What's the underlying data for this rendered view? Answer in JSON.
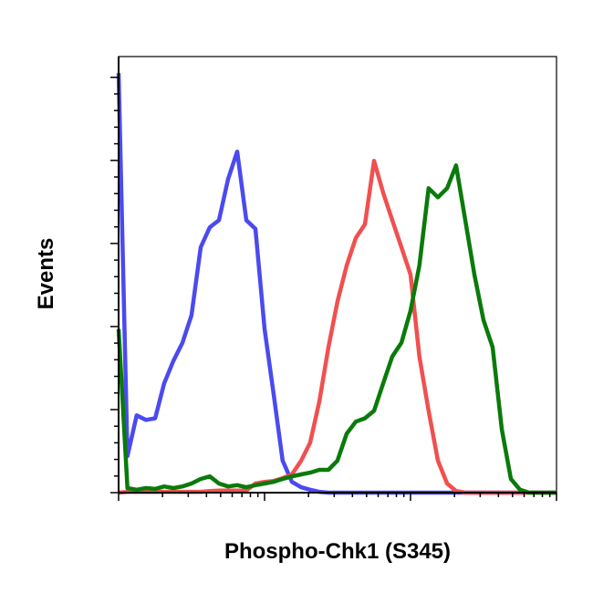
{
  "chart_data": {
    "type": "line",
    "xlabel": "Phospho-Chk1 (S345)",
    "ylabel": "Events",
    "xscale": "log",
    "xlim": [
      1,
      1000
    ],
    "xticks": [
      1,
      10,
      100,
      1000
    ],
    "xminorticks": [
      2,
      3,
      4,
      5,
      6,
      7,
      8,
      9,
      20,
      30,
      40,
      50,
      60,
      70,
      80,
      90,
      200,
      300,
      400,
      500,
      600,
      700,
      800,
      900
    ],
    "ylim": [
      0,
      105
    ],
    "yticks": [
      0,
      20,
      40,
      60,
      80,
      100
    ],
    "yminorticks": [
      4,
      8,
      12,
      16,
      24,
      28,
      32,
      36,
      44,
      48,
      52,
      56,
      64,
      68,
      72,
      76,
      84,
      88,
      92,
      96
    ],
    "x": [
      1,
      1.15,
      1.33,
      1.54,
      1.78,
      2.05,
      2.37,
      2.74,
      3.16,
      3.65,
      4.22,
      4.87,
      5.62,
      6.49,
      7.5,
      8.66,
      10,
      11.5,
      13.3,
      15.4,
      17.8,
      20.5,
      23.7,
      27.4,
      31.6,
      36.5,
      42.2,
      48.7,
      56.2,
      64.9,
      75,
      86.6,
      100,
      115,
      133,
      154,
      178,
      205,
      237,
      274,
      316,
      365,
      422,
      487,
      562,
      649,
      750,
      866,
      1000
    ],
    "series": [
      {
        "color": "#4a4af0",
        "values": [
          101,
          8.8,
          18.6,
          17.5,
          17.9,
          26.3,
          31.7,
          36.1,
          42.7,
          59.1,
          63.9,
          65.6,
          75.5,
          82.1,
          65.6,
          63.5,
          39.4,
          24.1,
          7.7,
          2.6,
          1.3,
          0.7,
          0.2,
          0,
          0,
          0,
          0,
          0,
          0,
          0,
          0,
          0,
          0,
          0,
          0,
          0,
          0,
          0,
          0,
          0,
          0,
          0,
          0,
          0,
          0,
          0,
          0,
          0,
          0
        ]
      },
      {
        "color": "#f05050",
        "values": [
          0,
          0.2,
          0.2,
          0.2,
          0.2,
          0.2,
          0.2,
          0.2,
          0.2,
          0.2,
          0.4,
          0.5,
          0.5,
          0.5,
          0.5,
          2.2,
          2.6,
          2.8,
          3.5,
          4.4,
          7.7,
          12,
          21.9,
          35,
          46,
          54.7,
          61.3,
          64.6,
          79.9,
          72.2,
          65.6,
          59.1,
          52.5,
          32.8,
          19.7,
          7.7,
          2.2,
          0.4,
          0,
          0,
          0,
          0,
          0,
          0,
          0,
          0,
          0,
          0,
          0
        ]
      },
      {
        "color": "#0a7a0a",
        "values": [
          39.4,
          1.1,
          0.7,
          1.1,
          0.9,
          1.5,
          1.1,
          1.5,
          2.2,
          3.3,
          3.9,
          2.2,
          1.5,
          1.8,
          1.3,
          1.8,
          2.2,
          2.6,
          3.3,
          3.9,
          4.4,
          4.8,
          5.5,
          5.5,
          7.7,
          14.2,
          17.1,
          17.9,
          19.7,
          26.3,
          32.8,
          36.1,
          43.8,
          54.7,
          73.3,
          71.1,
          73.3,
          78.8,
          65.6,
          52.5,
          41.6,
          35,
          15.3,
          3.3,
          0.7,
          0,
          0,
          0,
          0
        ]
      }
    ]
  }
}
